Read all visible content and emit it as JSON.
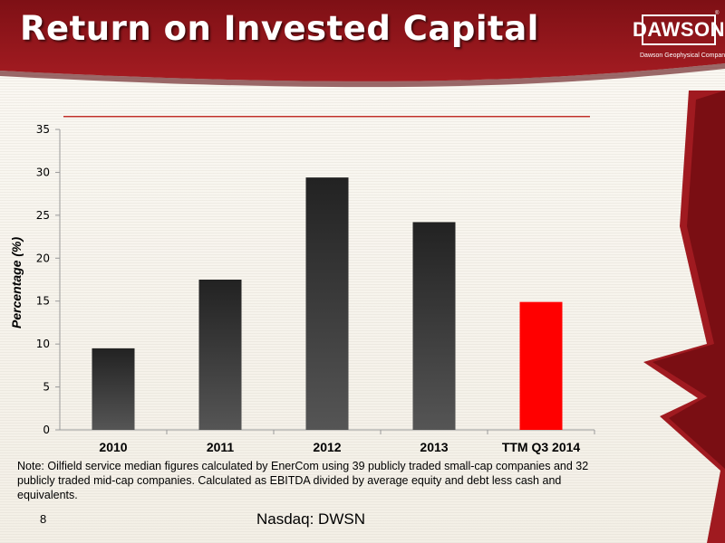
{
  "slide": {
    "title": "Return on Invested Capital",
    "logo_text": "DAWSON",
    "logo_sub": "Dawson Geophysical Company",
    "logo_tm": "®",
    "note": "Note: Oilfield service median figures  calculated by EnerCom using 39 publicly traded small-cap companies and 32 publicly traded mid-cap companies. Calculated as EBITDA divided by average equity and debt less cash and equivalents.",
    "page_number": "8",
    "footer": "Nasdaq: DWSN"
  },
  "colors": {
    "header_red": "#8e141a",
    "bar_dark": "#2b2b2b",
    "bar_highlight": "#ff0000",
    "reference_line": "#c0302a"
  },
  "chart_data": {
    "type": "bar",
    "categories": [
      "2010",
      "2011",
      "2012",
      "2013",
      "TTM Q3 2014"
    ],
    "values": [
      9.5,
      17.5,
      29.4,
      24.2,
      14.9
    ],
    "highlight_index": 4,
    "title": "",
    "xlabel": "",
    "ylabel": "Percentage (%)",
    "ylim": [
      0,
      35
    ],
    "yticks": [
      0,
      5,
      10,
      15,
      20,
      25,
      30,
      35
    ],
    "reference_line_value": 36.5,
    "grid": false,
    "legend": "none"
  }
}
